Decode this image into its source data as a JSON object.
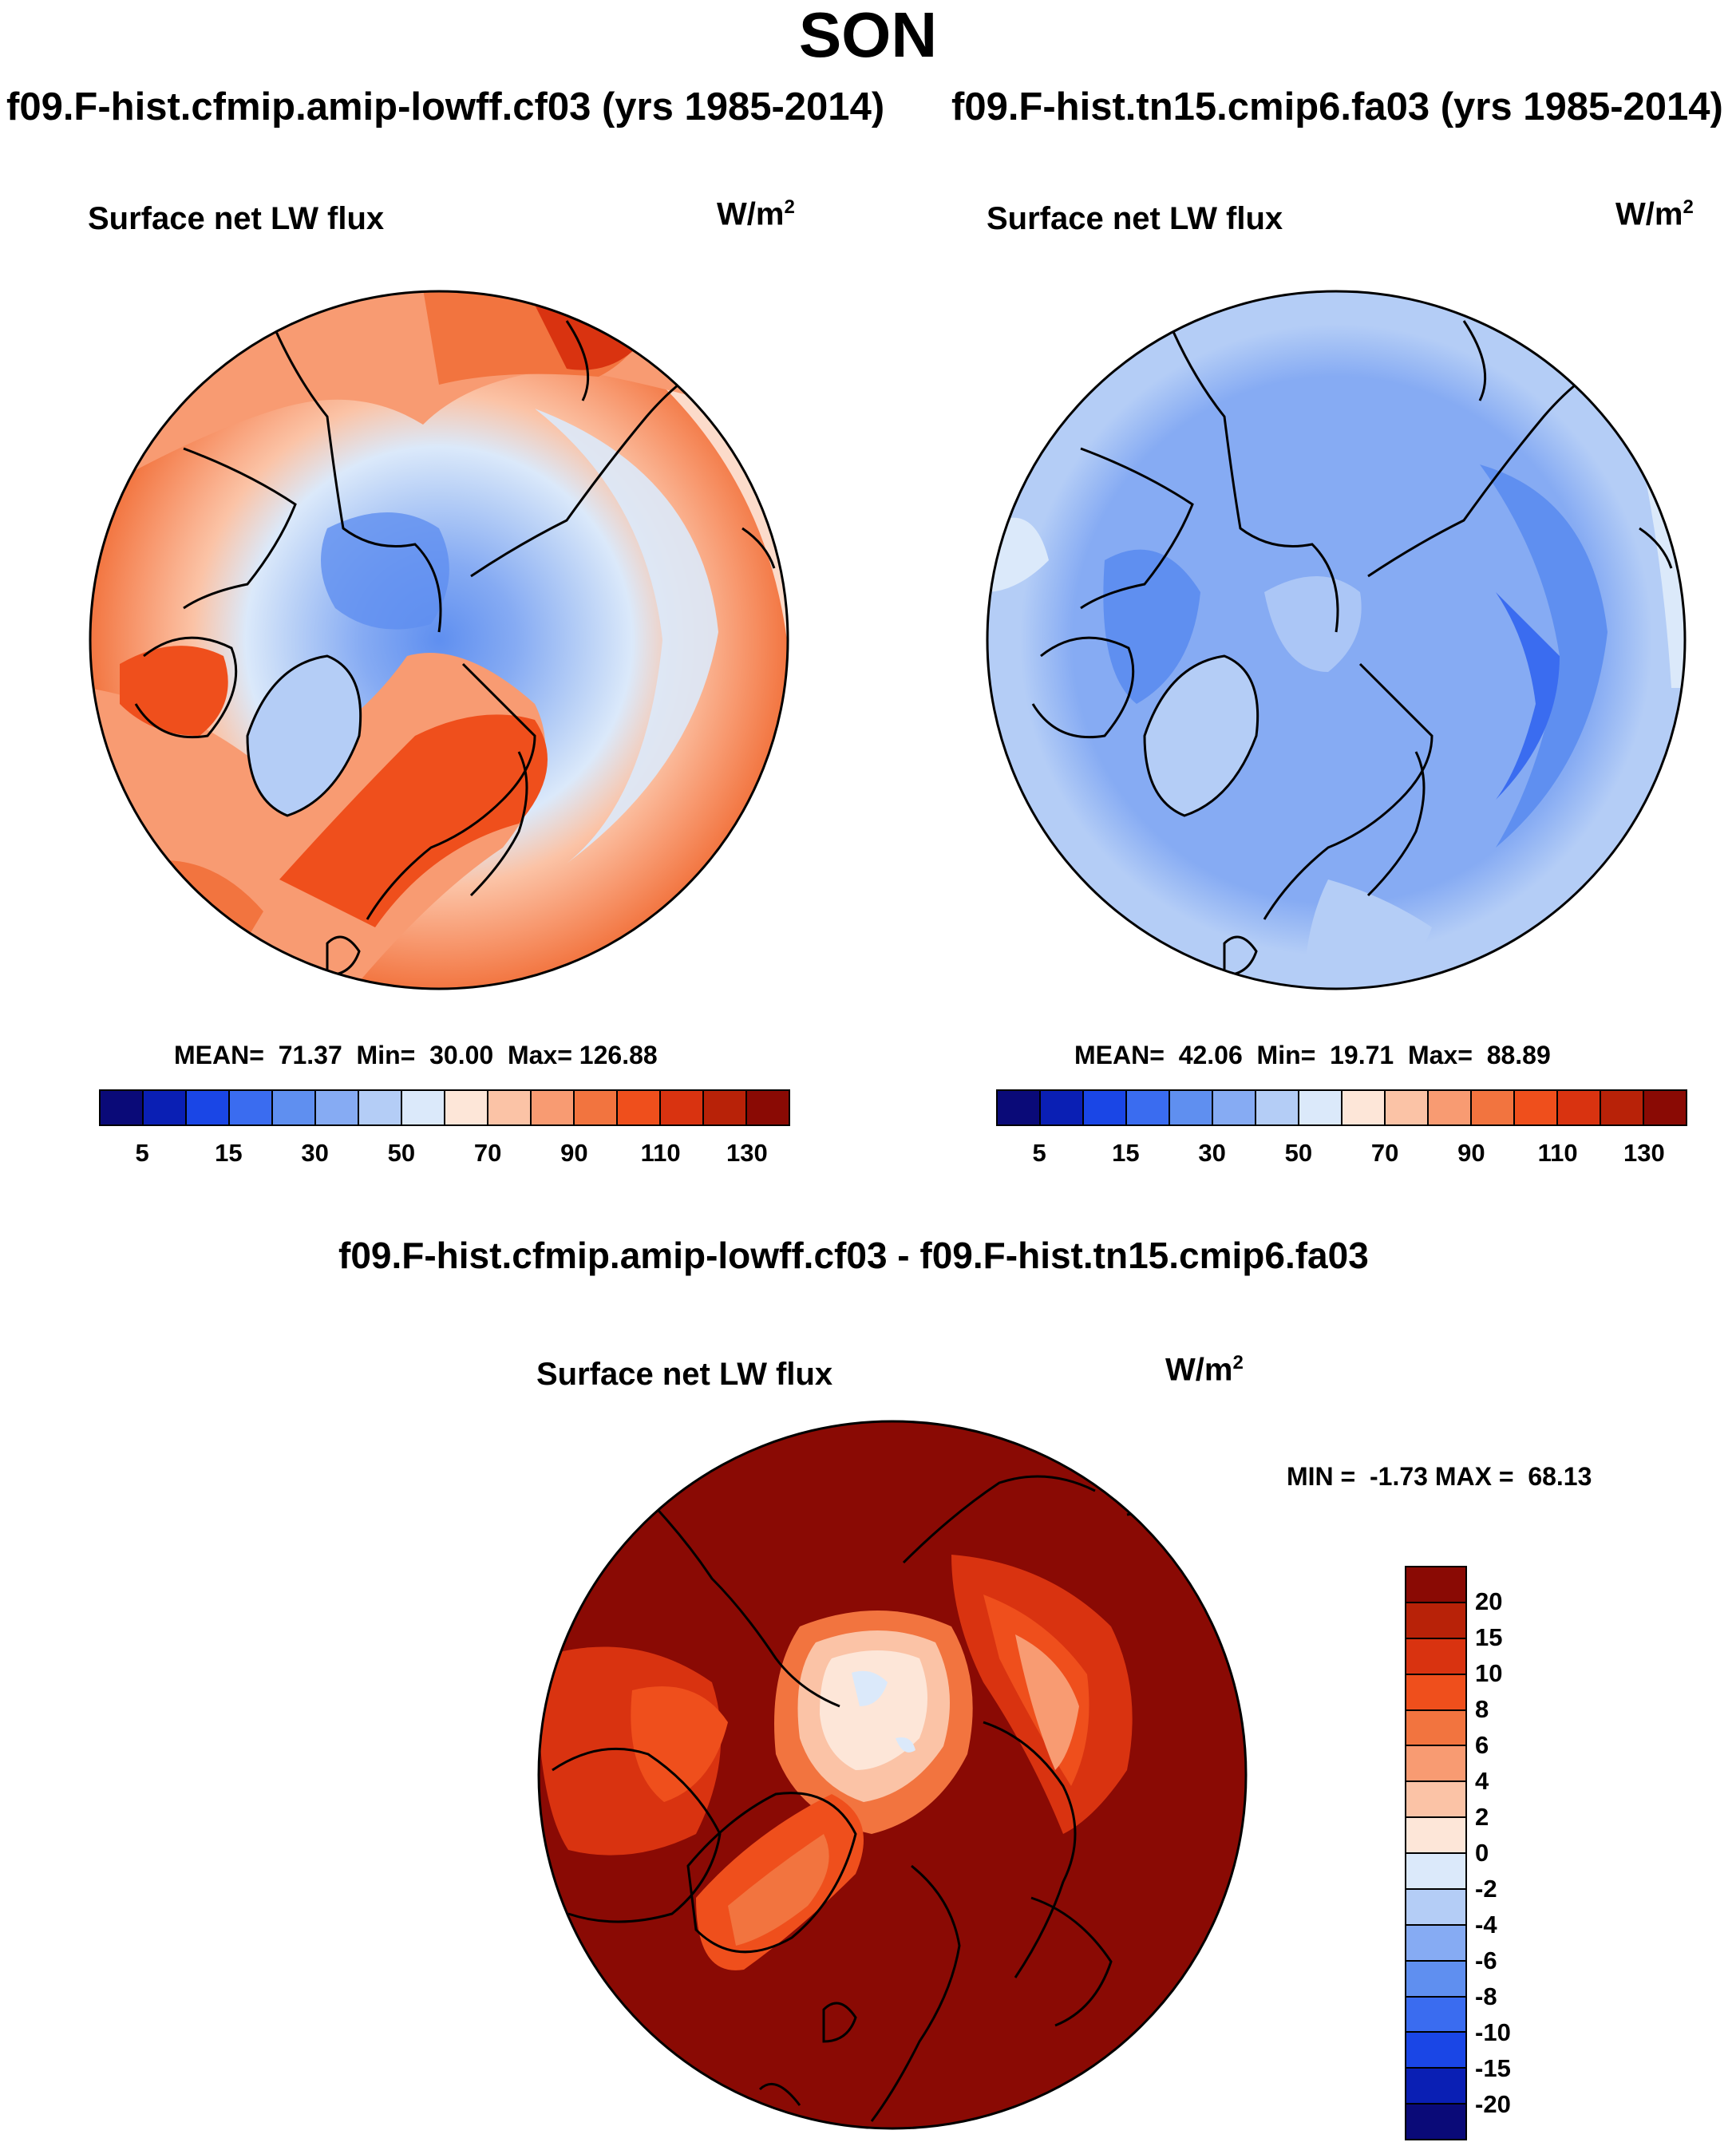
{
  "figure": {
    "season_title": "SON",
    "panel_left": {
      "case_title": "f09.F-hist.cfmip.amip-lowff.cf03 (yrs 1985-2014)",
      "variable": "Surface net LW flux",
      "units_base": "W/m",
      "units_exp": "2",
      "stats": "MEAN=  71.37  Min=  30.00  Max= 126.88",
      "colorbar_ticks": [
        "5",
        "15",
        "30",
        "50",
        "70",
        "90",
        "110",
        "130"
      ]
    },
    "panel_right": {
      "case_title": "f09.F-hist.tn15.cmip6.fa03 (yrs 1985-2014)",
      "variable": "Surface net LW flux",
      "units_base": "W/m",
      "units_exp": "2",
      "stats": "MEAN=  42.06  Min=  19.71  Max=  88.89",
      "colorbar_ticks": [
        "5",
        "15",
        "30",
        "50",
        "70",
        "90",
        "110",
        "130"
      ]
    },
    "panel_diff": {
      "case_title": "f09.F-hist.cfmip.amip-lowff.cf03 - f09.F-hist.tn15.cmip6.fa03",
      "variable": "Surface net LW flux",
      "units_base": "W/m",
      "units_exp": "2",
      "stats": "MIN =  -1.73 MAX =  68.13",
      "colorbar_ticks": [
        "20",
        "15",
        "10",
        "8",
        "6",
        "4",
        "2",
        "0",
        "-2",
        "-4",
        "-6",
        "-8",
        "-10",
        "-15",
        "-20"
      ]
    }
  },
  "colors": {
    "abs_scale": [
      "#0a0a78",
      "#0a1fb4",
      "#1a46e6",
      "#3a6cf0",
      "#5f8ff0",
      "#86abf3",
      "#b4cdf6",
      "#dbe9fa",
      "#fde6d8",
      "#fbc3a6",
      "#f89b72",
      "#f2743f",
      "#ef4f1c",
      "#d93310",
      "#b82208",
      "#8a0a04"
    ],
    "diff_scale": [
      "#8a0a04",
      "#b82208",
      "#d93310",
      "#ef4f1c",
      "#f2743f",
      "#f89b72",
      "#fbc3a6",
      "#fde6d8",
      "#dbe9fa",
      "#b4cdf6",
      "#86abf3",
      "#5f8ff0",
      "#3a6cf0",
      "#1a46e6",
      "#0a1fb4",
      "#0a0a78"
    ]
  }
}
